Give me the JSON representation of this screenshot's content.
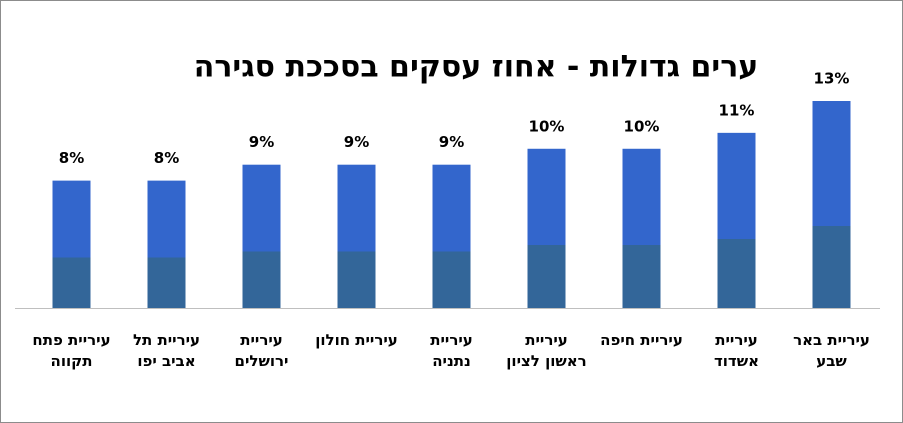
{
  "chart_data": {
    "type": "bar",
    "title": "ערים גדולות - אחוז עסקים בסככת סגירה",
    "categories": [
      "עיריית פתח תקווה",
      "עיריית תל אביב יפו",
      "עיריית ירושלים",
      "עיריית חולון",
      "עיריית נתניה",
      "עיריית ראשון לציון",
      "עיריית חיפה",
      "עיריית אשדוד",
      "עיריית באר שבע"
    ],
    "values": [
      8,
      8,
      9,
      9,
      9,
      10,
      10,
      11,
      13
    ],
    "value_labels": [
      "8%",
      "8%",
      "9%",
      "9%",
      "9%",
      "10%",
      "10%",
      "11%",
      "13%"
    ],
    "color": "#3366cc"
  }
}
